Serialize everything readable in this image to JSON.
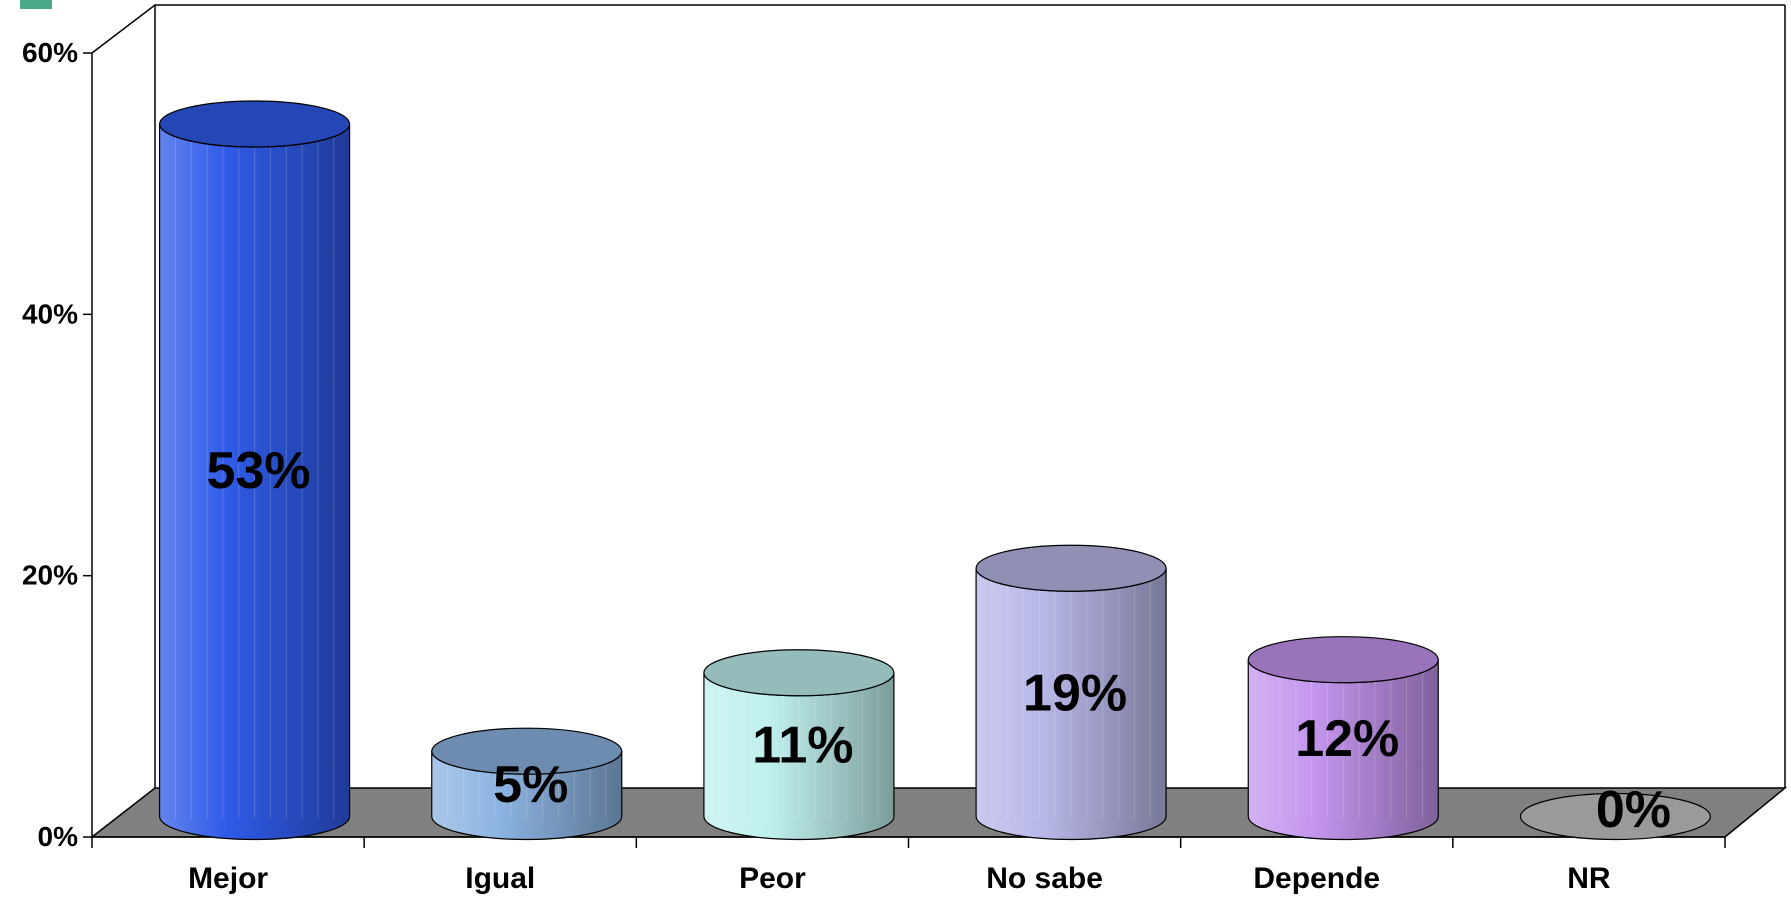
{
  "chart_data": {
    "type": "bar",
    "style": "3d-cylinder",
    "categories": [
      "Mejor",
      "Igual",
      "Peor",
      "No sabe",
      "Depende",
      "NR"
    ],
    "values": [
      53,
      5,
      11,
      19,
      12,
      0
    ],
    "data_labels": [
      "53%",
      "5%",
      "11%",
      "19%",
      "12%",
      "0%"
    ],
    "colors": [
      "#2f5be8",
      "#8db4e2",
      "#bff0ee",
      "#b8b8e8",
      "#c495ee",
      "#9a9a9a"
    ],
    "y_ticks": [
      0,
      20,
      40,
      60
    ],
    "y_tick_labels": [
      "0%",
      "20%",
      "40%",
      "60%"
    ],
    "ylim": [
      0,
      60
    ],
    "floor_color": "#808080",
    "grid": false,
    "legend": "none"
  }
}
